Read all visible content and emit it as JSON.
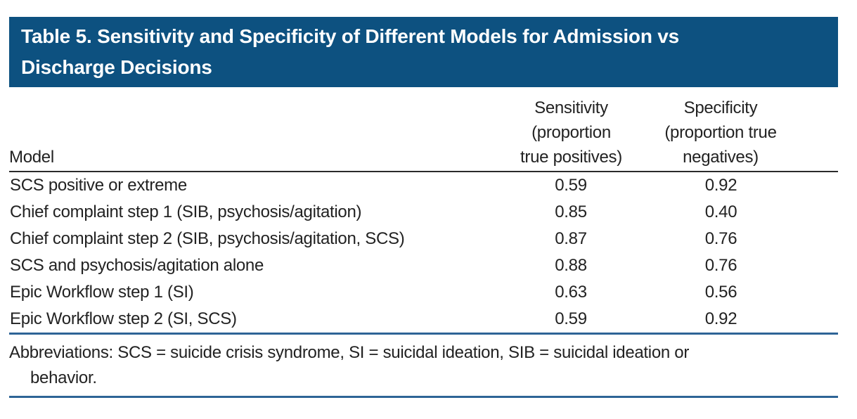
{
  "title": "Table 5. Sensitivity and Specificity of Different Models for Admission vs\nDischarge Decisions",
  "table": {
    "columns": {
      "model": "Model",
      "sensitivity": "Sensitivity\n(proportion\ntrue positives)",
      "specificity": "Specificity\n(proportion true\nnegatives)"
    },
    "rows": [
      {
        "model": "SCS positive or extreme",
        "sensitivity": "0.59",
        "specificity": "0.92"
      },
      {
        "model": "Chief complaint step 1 (SIB, psychosis/agitation)",
        "sensitivity": "0.85",
        "specificity": "0.40"
      },
      {
        "model": "Chief complaint step 2 (SIB, psychosis/agitation, SCS)",
        "sensitivity": "0.87",
        "specificity": "0.76"
      },
      {
        "model": "SCS and psychosis/agitation alone",
        "sensitivity": "0.88",
        "specificity": "0.76"
      },
      {
        "model": "Epic Workflow step 1 (SI)",
        "sensitivity": "0.63",
        "specificity": "0.56"
      },
      {
        "model": "Epic Workflow step 2 (SI, SCS)",
        "sensitivity": "0.59",
        "specificity": "0.92"
      }
    ]
  },
  "footnote": {
    "line1": "Abbreviations: SCS = suicide crisis syndrome, SI = suicidal ideation, SIB = suicidal ideation or",
    "line2": "behavior."
  },
  "colors": {
    "title_band_bg": "#0d5180",
    "title_text": "#ffffff",
    "header_rule_black": "#2b2b2b",
    "rule_blue": "#2e6496",
    "body_text": "#222222"
  },
  "chart_data": {
    "type": "table",
    "title": "Table 5. Sensitivity and Specificity of Different Models for Admission vs Discharge Decisions",
    "categories": [
      "SCS positive or extreme",
      "Chief complaint step 1 (SIB, psychosis/agitation)",
      "Chief complaint step 2 (SIB, psychosis/agitation, SCS)",
      "SCS and psychosis/agitation alone",
      "Epic Workflow step 1 (SI)",
      "Epic Workflow step 2 (SI, SCS)"
    ],
    "series": [
      {
        "name": "Sensitivity (proportion true positives)",
        "values": [
          0.59,
          0.85,
          0.87,
          0.88,
          0.63,
          0.59
        ]
      },
      {
        "name": "Specificity (proportion true negatives)",
        "values": [
          0.92,
          0.4,
          0.76,
          0.76,
          0.56,
          0.92
        ]
      }
    ]
  }
}
